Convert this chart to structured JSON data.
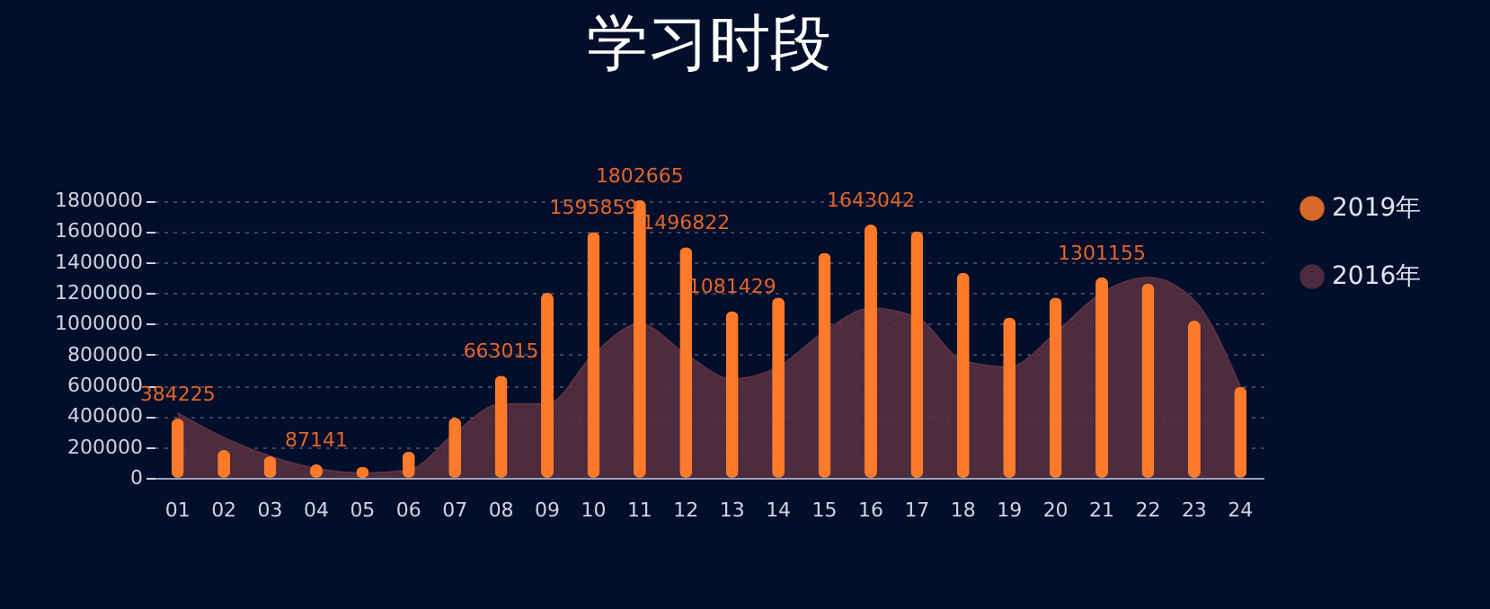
{
  "chart_data": {
    "type": "bar",
    "title": "学习时段",
    "categories": [
      "01",
      "02",
      "03",
      "04",
      "05",
      "06",
      "07",
      "08",
      "09",
      "10",
      "11",
      "12",
      "13",
      "14",
      "15",
      "16",
      "17",
      "18",
      "19",
      "20",
      "21",
      "22",
      "23",
      "24"
    ],
    "series": [
      {
        "name": "2019年",
        "color": "#ff7a2a",
        "values": [
          384225,
          180000,
          140000,
          87141,
          70000,
          170000,
          390000,
          663015,
          1200000,
          1595859,
          1802665,
          1496822,
          1081429,
          1170000,
          1460000,
          1643042,
          1600000,
          1330000,
          1040000,
          1170000,
          1301155,
          1260000,
          1020000,
          590000
        ],
        "value_labels": [
          "384225",
          null,
          null,
          "87141",
          null,
          null,
          null,
          "663015",
          null,
          "1595859",
          "1802665",
          "1496822",
          "1081429",
          null,
          null,
          "1643042",
          null,
          null,
          null,
          null,
          "1301155",
          null,
          null,
          null
        ]
      },
      {
        "name": "2016年",
        "type": "area",
        "color": "#5b3142",
        "values": [
          420000,
          260000,
          140000,
          60000,
          30000,
          50000,
          290000,
          480000,
          480000,
          800000,
          1000000,
          800000,
          640000,
          720000,
          950000,
          1100000,
          1040000,
          760000,
          720000,
          940000,
          1200000,
          1300000,
          1150000,
          590000
        ]
      }
    ],
    "ylim": [
      0,
      1830000
    ],
    "yticks": [
      0,
      200000,
      400000,
      600000,
      800000,
      1000000,
      1200000,
      1400000,
      1600000,
      1800000
    ],
    "grid": "y",
    "legend": "right"
  }
}
